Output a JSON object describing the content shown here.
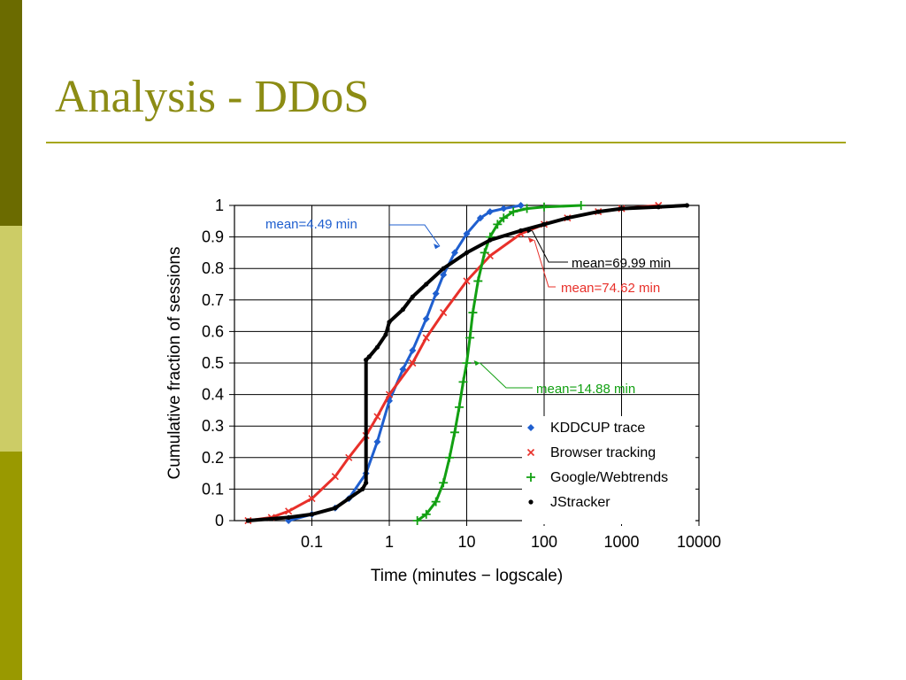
{
  "slide": {
    "title": "Analysis - DDoS",
    "accent_colors": [
      "#6b6b00",
      "#cccc66",
      "#999900"
    ],
    "title_color": "#8c8c14"
  },
  "chart_data": {
    "type": "line",
    "xlabel": "Time (minutes − logscale)",
    "ylabel": "Cumulative fraction of sessions",
    "xscale": "log",
    "xlim": [
      0.01,
      10000
    ],
    "ylim": [
      0,
      1
    ],
    "xticks": [
      0.1,
      1,
      10,
      100,
      1000,
      10000
    ],
    "xtick_labels": [
      "0.1",
      "1",
      "10",
      "100",
      "1000",
      "10000"
    ],
    "yticks": [
      0,
      0.1,
      0.2,
      0.3,
      0.4,
      0.5,
      0.6,
      0.7,
      0.8,
      0.9,
      1
    ],
    "ytick_labels": [
      "0",
      "0.1",
      "0.2",
      "0.3",
      "0.4",
      "0.5",
      "0.6",
      "0.7",
      "0.8",
      "0.9",
      "1"
    ],
    "grid": true,
    "legend_position": "bottom-right",
    "series": [
      {
        "name": "KDDCUP trace",
        "color": "#1f5fcf",
        "marker": "diamond",
        "x": [
          0.05,
          0.1,
          0.2,
          0.3,
          0.5,
          0.7,
          1,
          1.5,
          2,
          3,
          4,
          5,
          7,
          10,
          15,
          20,
          30,
          50
        ],
        "y": [
          0,
          0.02,
          0.04,
          0.07,
          0.15,
          0.25,
          0.38,
          0.48,
          0.54,
          0.64,
          0.72,
          0.78,
          0.85,
          0.91,
          0.96,
          0.98,
          0.99,
          1.0
        ]
      },
      {
        "name": "Browser tracking",
        "color": "#e8302a",
        "marker": "x",
        "x": [
          0.015,
          0.03,
          0.05,
          0.1,
          0.2,
          0.3,
          0.5,
          0.7,
          1,
          2,
          3,
          5,
          10,
          20,
          50,
          100,
          200,
          500,
          1000,
          3000
        ],
        "y": [
          0,
          0.01,
          0.03,
          0.07,
          0.14,
          0.2,
          0.27,
          0.33,
          0.4,
          0.5,
          0.58,
          0.66,
          0.76,
          0.84,
          0.91,
          0.94,
          0.96,
          0.98,
          0.99,
          1.0
        ]
      },
      {
        "name": "Google/Webtrends",
        "color": "#12a012",
        "marker": "plus",
        "x": [
          2.3,
          3,
          4,
          5,
          6,
          7,
          8,
          9,
          10,
          11,
          12,
          14,
          17,
          20,
          25,
          30,
          40,
          60,
          100,
          300
        ],
        "y": [
          0,
          0.02,
          0.06,
          0.12,
          0.2,
          0.28,
          0.36,
          0.44,
          0.5,
          0.58,
          0.66,
          0.76,
          0.85,
          0.9,
          0.94,
          0.96,
          0.98,
          0.99,
          0.995,
          1.0
        ]
      },
      {
        "name": "JStracker",
        "color": "#000000",
        "marker": "dot",
        "x": [
          0.015,
          0.05,
          0.1,
          0.2,
          0.3,
          0.45,
          0.5,
          0.5,
          0.55,
          0.7,
          0.9,
          1,
          1.5,
          2,
          3,
          5,
          10,
          20,
          50,
          100,
          200,
          500,
          1000,
          3000,
          7000
        ],
        "y": [
          0,
          0.01,
          0.02,
          0.04,
          0.07,
          0.1,
          0.12,
          0.51,
          0.52,
          0.55,
          0.59,
          0.63,
          0.67,
          0.71,
          0.75,
          0.8,
          0.85,
          0.89,
          0.92,
          0.94,
          0.96,
          0.98,
          0.99,
          0.995,
          1.0
        ]
      }
    ],
    "annotations": [
      {
        "text": "mean=4.49 min",
        "color": "#1f5fcf",
        "x": 4.49,
        "y": 0.87
      },
      {
        "text": "mean=69.99 min",
        "color": "#000000",
        "x": 69.99,
        "y": 0.92
      },
      {
        "text": "mean=74.62 min",
        "color": "#e8302a",
        "x": 74.62,
        "y": 0.89
      },
      {
        "text": "mean=14.88 min",
        "color": "#12a012",
        "x": 14.88,
        "y": 0.5
      }
    ]
  }
}
